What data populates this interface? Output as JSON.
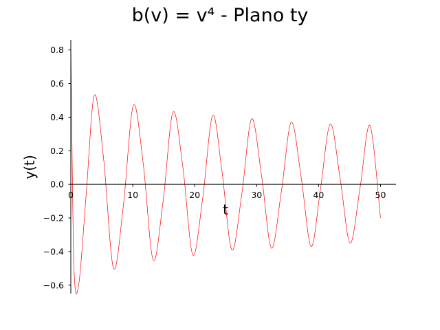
{
  "chart_data": {
    "type": "line",
    "title": "b(v) = v⁴ - Plano ty",
    "xlabel": "t",
    "ylabel": "y(t)",
    "xlim": [
      0,
      52.5
    ],
    "ylim": [
      -0.65,
      0.86
    ],
    "x_ticks": [
      0,
      10,
      20,
      30,
      40,
      50
    ],
    "y_ticks": [
      -0.6,
      -0.4,
      -0.2,
      0.0,
      0.2,
      0.4,
      0.6,
      0.8
    ],
    "x_tick_labels": [
      "0",
      "10",
      "20",
      "30",
      "40",
      "50"
    ],
    "y_tick_labels": [
      "−0.6",
      "−0.4",
      "−0.2",
      "0.0",
      "0.2",
      "0.4",
      "0.6",
      "0.8"
    ],
    "grid": false,
    "legend": "none",
    "series": [
      {
        "color": "#ff0000",
        "x": [
          0.0,
          0.5,
          1.3,
          2.5,
          3.8,
          5.3,
          6.9,
          8.5,
          10.1,
          11.7,
          13.3,
          14.9,
          16.5,
          18.1,
          19.7,
          21.3,
          22.9,
          24.4,
          26.0,
          27.6,
          29.2,
          30.8,
          32.4,
          34.0,
          35.6,
          37.2,
          38.8,
          40.3,
          41.9,
          43.5,
          45.1,
          46.7,
          48.3,
          50.0
        ],
        "y": [
          0.86,
          -0.48,
          -0.59,
          -0.05,
          0.53,
          0.15,
          -0.5,
          -0.12,
          0.47,
          0.12,
          -0.45,
          -0.1,
          0.43,
          0.1,
          -0.42,
          -0.08,
          0.41,
          0.08,
          -0.39,
          -0.06,
          0.39,
          0.05,
          -0.38,
          -0.04,
          0.37,
          0.04,
          -0.37,
          -0.03,
          0.36,
          0.03,
          -0.35,
          -0.02,
          0.35,
          -0.2
        ]
      }
    ]
  }
}
